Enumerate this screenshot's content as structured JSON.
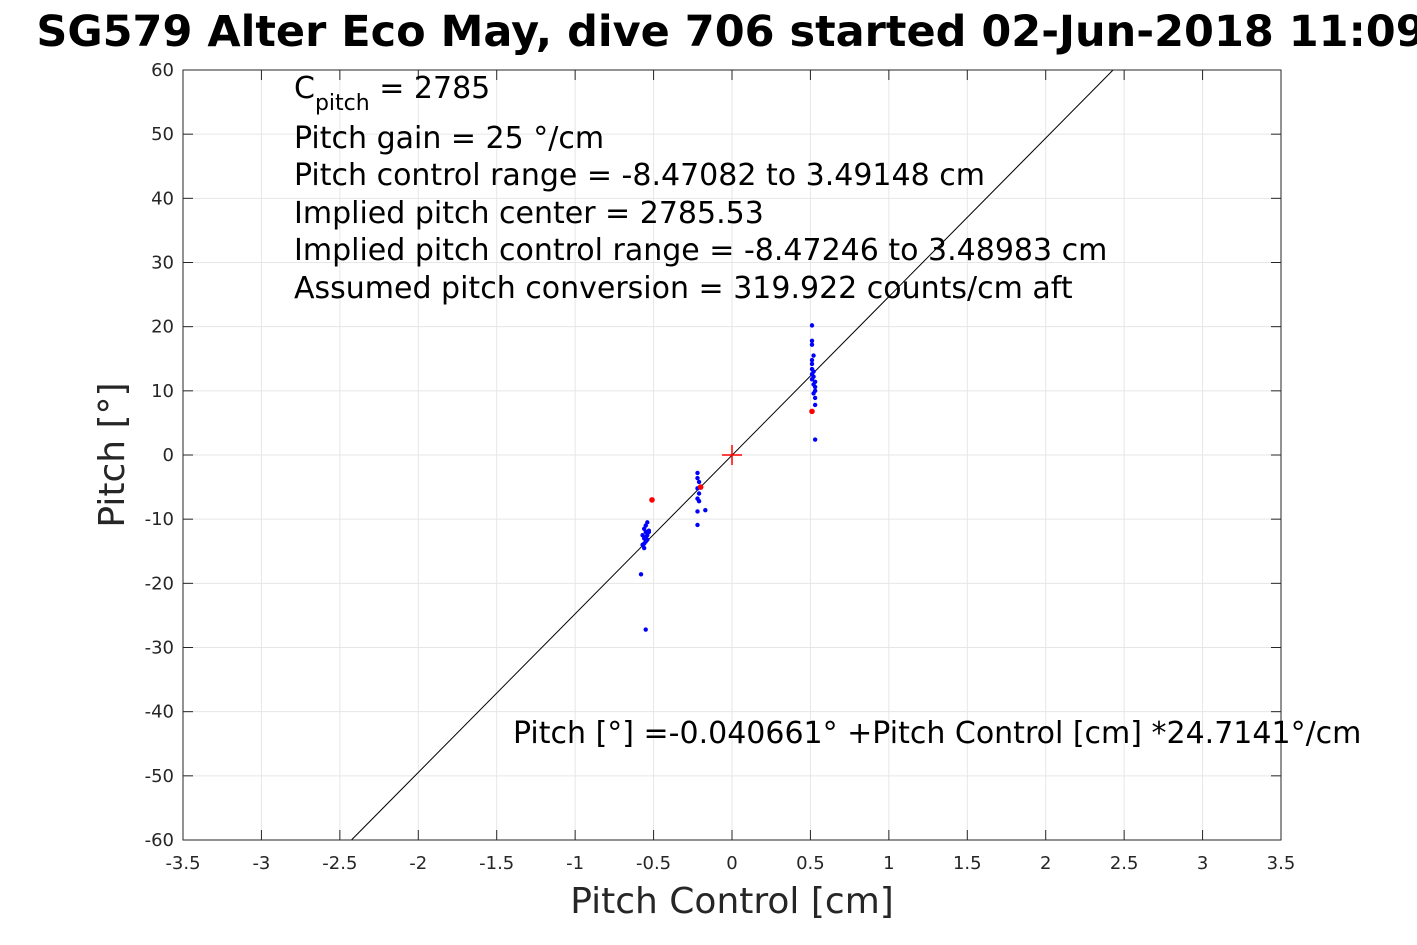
{
  "chart_data": {
    "type": "scatter",
    "title": "SG579 Alter Eco May, dive 706 started 02-Jun-2018 11:09",
    "xlabel": "Pitch Control [cm]",
    "ylabel": "Pitch [°]",
    "xlim": [
      -3.5,
      3.5
    ],
    "ylim": [
      -60,
      60
    ],
    "xticks": [
      -3.5,
      -3,
      -2.5,
      -2,
      -1.5,
      -1,
      -0.5,
      0,
      0.5,
      1,
      1.5,
      2,
      2.5,
      3,
      3.5
    ],
    "yticks": [
      -60,
      -50,
      -40,
      -30,
      -20,
      -10,
      0,
      10,
      20,
      30,
      40,
      50,
      60
    ],
    "xtick_labels": [
      "-3.5",
      "-3",
      "-2.5",
      "-2",
      "-1.5",
      "-1",
      "-0.5",
      "0",
      "0.5",
      "1",
      "1.5",
      "2",
      "2.5",
      "3",
      "3.5"
    ],
    "ytick_labels": [
      "-60",
      "-50",
      "-40",
      "-30",
      "-20",
      "-10",
      "0",
      "10",
      "20",
      "30",
      "40",
      "50",
      "60"
    ],
    "grid": true,
    "colors": {
      "data_points": "#0000ff",
      "flagged_points": "#ff0000",
      "fit_line": "#000000",
      "center_marker": "#ff0000"
    },
    "fit_line": {
      "intercept": -0.040661,
      "slope": 24.7141
    },
    "center_marker": {
      "x": 0,
      "y": 0
    },
    "series": [
      {
        "values": [
          [
            -0.56,
            -11.5
          ],
          [
            -0.55,
            -12.0
          ],
          [
            -0.54,
            -12.5
          ],
          [
            -0.56,
            -13.0
          ],
          [
            -0.55,
            -13.5
          ],
          [
            -0.57,
            -14.0
          ],
          [
            -0.56,
            -14.5
          ],
          [
            -0.55,
            -11.0
          ],
          [
            -0.54,
            -10.5
          ],
          [
            -0.53,
            -12.0
          ],
          [
            -0.57,
            -12.5
          ],
          [
            -0.56,
            -13.8
          ],
          [
            -0.55,
            -12.8
          ],
          [
            -0.54,
            -13.2
          ],
          [
            -0.53,
            -11.8
          ],
          [
            -0.58,
            -18.6
          ],
          [
            -0.55,
            -27.2
          ],
          [
            -0.22,
            -2.8
          ],
          [
            -0.22,
            -3.6
          ],
          [
            -0.21,
            -4.2
          ],
          [
            -0.22,
            -5.2
          ],
          [
            -0.21,
            -6.0
          ],
          [
            -0.22,
            -6.8
          ],
          [
            -0.21,
            -7.2
          ],
          [
            -0.22,
            -8.8
          ],
          [
            -0.17,
            -8.6
          ],
          [
            -0.22,
            -10.9
          ],
          [
            0.51,
            20.2
          ],
          [
            0.51,
            17.8
          ],
          [
            0.51,
            17.2
          ],
          [
            0.52,
            15.5
          ],
          [
            0.51,
            14.8
          ],
          [
            0.51,
            14.2
          ],
          [
            0.51,
            13.4
          ],
          [
            0.52,
            13.0
          ],
          [
            0.51,
            12.6
          ],
          [
            0.52,
            12.2
          ],
          [
            0.51,
            11.8
          ],
          [
            0.53,
            11.4
          ],
          [
            0.52,
            11.0
          ],
          [
            0.53,
            10.6
          ],
          [
            0.53,
            10.0
          ],
          [
            0.52,
            9.6
          ],
          [
            0.53,
            8.9
          ],
          [
            0.53,
            7.8
          ],
          [
            0.53,
            2.4
          ]
        ]
      },
      {
        "values": [
          [
            -0.51,
            -7.0
          ],
          [
            0.51,
            6.8
          ],
          [
            -0.2,
            -5.0
          ]
        ]
      }
    ],
    "annotations": {
      "c_pitch_symbol": "C",
      "c_pitch_subscript": "pitch",
      "c_pitch_value": " = 2785",
      "lines": [
        "Pitch gain = 25 °/cm",
        "Pitch control range = -8.47082 to 3.49148 cm",
        "Implied pitch center = 2785.53",
        "Implied pitch control range = -8.47246 to 3.48983 cm",
        "Assumed pitch conversion = 319.922 counts/cm aft"
      ],
      "fit_equation": "Pitch [°] =-0.040661° +Pitch Control [cm] *24.7141°/cm"
    }
  }
}
